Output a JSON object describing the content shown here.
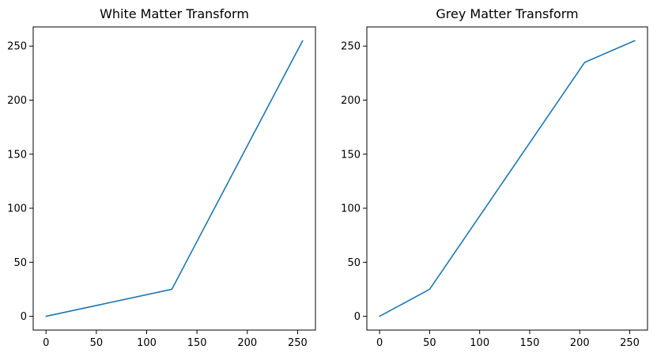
{
  "chart_data": [
    {
      "type": "line",
      "title": "White Matter Transform",
      "xlabel": "",
      "ylabel": "",
      "xlim": [
        -12.75,
        267.75
      ],
      "ylim": [
        -12.75,
        267.75
      ],
      "xticks": [
        0,
        50,
        100,
        150,
        200,
        250
      ],
      "yticks": [
        0,
        50,
        100,
        150,
        200,
        250
      ],
      "grid": false,
      "series": [
        {
          "color": "#1f77b4",
          "x": [
            0,
            125,
            255
          ],
          "y": [
            0,
            25,
            255
          ]
        }
      ]
    },
    {
      "type": "line",
      "title": "Grey Matter Transform",
      "xlabel": "",
      "ylabel": "",
      "xlim": [
        -12.75,
        267.75
      ],
      "ylim": [
        -12.75,
        267.75
      ],
      "xticks": [
        0,
        50,
        100,
        150,
        200,
        250
      ],
      "yticks": [
        0,
        50,
        100,
        150,
        200,
        250
      ],
      "grid": false,
      "series": [
        {
          "color": "#1f77b4",
          "x": [
            0,
            50,
            205,
            255
          ],
          "y": [
            0,
            25,
            235,
            255
          ]
        }
      ]
    }
  ]
}
